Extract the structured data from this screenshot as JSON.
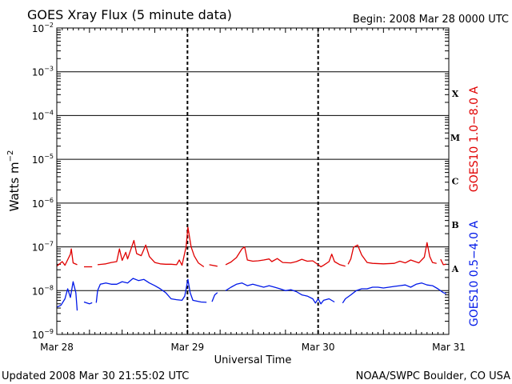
{
  "chart_data": {
    "type": "line",
    "title": "GOES Xray Flux (5 minute data)",
    "begin_label": "Begin:  2008 Mar 28 0000 UTC",
    "xlabel": "Universal Time",
    "ylabel": "Watts m",
    "ylabel_exp": "−2",
    "y_scale": "log",
    "ylim": [
      1e-09,
      0.01
    ],
    "y_ticks": [
      {
        "mant": "10",
        "exp": "−2",
        "value": 0.01
      },
      {
        "mant": "10",
        "exp": "−3",
        "value": 0.001
      },
      {
        "mant": "10",
        "exp": "−4",
        "value": 0.0001
      },
      {
        "mant": "10",
        "exp": "−5",
        "value": 1e-05
      },
      {
        "mant": "10",
        "exp": "−6",
        "value": 1e-06
      },
      {
        "mant": "10",
        "exp": "−7",
        "value": 1e-07
      },
      {
        "mant": "10",
        "exp": "−8",
        "value": 1e-08
      },
      {
        "mant": "10",
        "exp": "−9",
        "value": 1e-09
      }
    ],
    "xlim": [
      "2008-03-28",
      "2008-03-31"
    ],
    "x_ticks": [
      {
        "label": "Mar 28",
        "value": "2008-03-28"
      },
      {
        "label": "Mar 29",
        "value": "2008-03-29"
      },
      {
        "label": "Mar 30",
        "value": "2008-03-30"
      },
      {
        "label": "Mar 31",
        "value": "2008-03-31"
      }
    ],
    "flare_classes": [
      {
        "label": "X",
        "value": 0.0001
      },
      {
        "label": "M",
        "value": 1e-05
      },
      {
        "label": "C",
        "value": 1e-06
      },
      {
        "label": "B",
        "value": 1e-07
      },
      {
        "label": "A",
        "value": 1e-08
      }
    ],
    "grid": true,
    "series": [
      {
        "name": "GOES10 1.0−8.0 A",
        "color": "#e00000",
        "points": [
          [
            "2008-03-28T00:00",
            3.6e-08
          ],
          [
            "2008-03-28T01:00",
            4.6e-08
          ],
          [
            "2008-03-28T01:30",
            3.8e-08
          ],
          [
            "2008-03-28T02:30",
            6.8e-08
          ],
          [
            "2008-03-28T02:40",
            9e-08
          ],
          [
            "2008-03-28T03:00",
            4.3e-08
          ],
          [
            "2008-03-28T03:45",
            3.9e-08
          ],
          null,
          [
            "2008-03-28T05:00",
            3.5e-08
          ],
          [
            "2008-03-28T06:30",
            3.5e-08
          ],
          null,
          [
            "2008-03-28T07:30",
            3.9e-08
          ],
          [
            "2008-03-28T09:00",
            4.1e-08
          ],
          [
            "2008-03-28T10:00",
            4.4e-08
          ],
          [
            "2008-03-28T11:00",
            4.6e-08
          ],
          [
            "2008-03-28T11:30",
            9e-08
          ],
          [
            "2008-03-28T12:00",
            4.9e-08
          ],
          [
            "2008-03-28T12:40",
            7.5e-08
          ],
          [
            "2008-03-28T13:00",
            5.3e-08
          ],
          [
            "2008-03-28T14:10",
            1.4e-07
          ],
          [
            "2008-03-28T14:40",
            7e-08
          ],
          [
            "2008-03-28T15:30",
            6.3e-08
          ],
          [
            "2008-03-28T16:20",
            1.1e-07
          ],
          [
            "2008-03-28T17:00",
            6e-08
          ],
          [
            "2008-03-28T18:00",
            4.4e-08
          ],
          [
            "2008-03-28T19:00",
            4.1e-08
          ],
          [
            "2008-03-28T20:00",
            4e-08
          ],
          [
            "2008-03-28T21:00",
            4e-08
          ],
          [
            "2008-03-28T22:00",
            3.9e-08
          ],
          [
            "2008-03-28T22:30",
            5e-08
          ],
          [
            "2008-03-28T23:00",
            3.8e-08
          ],
          [
            "2008-03-28T23:45",
            1e-07
          ],
          [
            "2008-03-29T00:05",
            2.8e-07
          ],
          [
            "2008-03-29T00:40",
            1e-07
          ],
          [
            "2008-03-29T01:15",
            6.2e-08
          ],
          [
            "2008-03-29T02:00",
            4.3e-08
          ],
          [
            "2008-03-29T03:00",
            3.5e-08
          ],
          null,
          [
            "2008-03-29T04:00",
            3.9e-08
          ],
          [
            "2008-03-29T05:30",
            3.6e-08
          ],
          null,
          [
            "2008-03-29T07:00",
            3.9e-08
          ],
          [
            "2008-03-29T08:00",
            4.5e-08
          ],
          [
            "2008-03-29T09:00",
            5.7e-08
          ],
          [
            "2008-03-29T10:00",
            9e-08
          ],
          [
            "2008-03-29T10:30",
            1e-07
          ],
          [
            "2008-03-29T11:00",
            5e-08
          ],
          [
            "2008-03-29T12:00",
            4.7e-08
          ],
          [
            "2008-03-29T13:00",
            4.8e-08
          ],
          [
            "2008-03-29T14:00",
            5e-08
          ],
          [
            "2008-03-29T15:00",
            5.3e-08
          ],
          [
            "2008-03-29T15:30",
            4.6e-08
          ],
          [
            "2008-03-29T16:30",
            5.4e-08
          ],
          [
            "2008-03-29T17:30",
            4.4e-08
          ],
          [
            "2008-03-29T19:00",
            4.3e-08
          ],
          [
            "2008-03-29T20:00",
            4.6e-08
          ],
          [
            "2008-03-29T21:00",
            5.2e-08
          ],
          [
            "2008-03-29T22:00",
            4.7e-08
          ],
          [
            "2008-03-29T23:00",
            4.8e-08
          ],
          [
            "2008-03-30T00:00",
            3.9e-08
          ],
          [
            "2008-03-30T00:30",
            3.5e-08
          ],
          [
            "2008-03-30T01:00",
            3.8e-08
          ],
          [
            "2008-03-30T02:00",
            4.6e-08
          ],
          [
            "2008-03-30T02:30",
            6.8e-08
          ],
          [
            "2008-03-30T03:00",
            4.6e-08
          ],
          [
            "2008-03-30T04:00",
            3.9e-08
          ],
          [
            "2008-03-30T05:00",
            3.6e-08
          ],
          null,
          [
            "2008-03-30T05:30",
            4e-08
          ],
          [
            "2008-03-30T06:00",
            5.3e-08
          ],
          [
            "2008-03-30T06:30",
            9.8e-08
          ],
          [
            "2008-03-30T07:15",
            1.1e-07
          ],
          [
            "2008-03-30T08:00",
            6.5e-08
          ],
          [
            "2008-03-30T09:00",
            4.4e-08
          ],
          [
            "2008-03-30T10:00",
            4.2e-08
          ],
          [
            "2008-03-30T12:00",
            4.1e-08
          ],
          [
            "2008-03-30T14:00",
            4.2e-08
          ],
          [
            "2008-03-30T15:00",
            4.7e-08
          ],
          [
            "2008-03-30T16:00",
            4.3e-08
          ],
          [
            "2008-03-30T17:00",
            5e-08
          ],
          [
            "2008-03-30T18:30",
            4.3e-08
          ],
          [
            "2008-03-30T19:30",
            5.8e-08
          ],
          [
            "2008-03-30T20:00",
            1.25e-07
          ],
          [
            "2008-03-30T20:30",
            6e-08
          ],
          [
            "2008-03-30T21:00",
            4.4e-08
          ],
          [
            "2008-03-30T21:45",
            4.2e-08
          ],
          null,
          [
            "2008-03-30T22:30",
            5.2e-08
          ],
          [
            "2008-03-30T23:00",
            3.9e-08
          ],
          [
            "2008-03-30T23:30",
            4e-08
          ]
        ]
      },
      {
        "name": "GOES10 0.5−4.0 A",
        "color": "#0018e8",
        "points": [
          [
            "2008-03-28T00:00",
            4.2e-09
          ],
          [
            "2008-03-28T00:45",
            4.6e-09
          ],
          [
            "2008-03-28T01:30",
            6.5e-09
          ],
          [
            "2008-03-28T02:00",
            1.1e-08
          ],
          [
            "2008-03-28T02:30",
            7e-09
          ],
          [
            "2008-03-28T03:00",
            1.6e-08
          ],
          [
            "2008-03-28T03:30",
            9e-09
          ],
          [
            "2008-03-28T03:45",
            3.5e-09
          ],
          null,
          [
            "2008-03-28T05:00",
            5.5e-09
          ],
          [
            "2008-03-28T06:00",
            5e-09
          ],
          [
            "2008-03-28T06:30",
            5.3e-09
          ],
          null,
          [
            "2008-03-28T07:15",
            5.3e-09
          ],
          [
            "2008-03-28T07:30",
            1e-08
          ],
          [
            "2008-03-28T08:00",
            1.4e-08
          ],
          [
            "2008-03-28T09:00",
            1.5e-08
          ],
          [
            "2008-03-28T10:00",
            1.4e-08
          ],
          [
            "2008-03-28T11:00",
            1.4e-08
          ],
          [
            "2008-03-28T12:00",
            1.6e-08
          ],
          [
            "2008-03-28T13:00",
            1.5e-08
          ],
          [
            "2008-03-28T14:00",
            1.9e-08
          ],
          [
            "2008-03-28T15:00",
            1.7e-08
          ],
          [
            "2008-03-28T16:00",
            1.8e-08
          ],
          [
            "2008-03-28T17:00",
            1.5e-08
          ],
          [
            "2008-03-28T18:00",
            1.3e-08
          ],
          [
            "2008-03-28T19:00",
            1.1e-08
          ],
          [
            "2008-03-28T20:00",
            9e-09
          ],
          [
            "2008-03-28T21:00",
            6.5e-09
          ],
          [
            "2008-03-28T22:00",
            6.2e-09
          ],
          [
            "2008-03-28T23:00",
            6e-09
          ],
          [
            "2008-03-28T23:30",
            7.5e-09
          ],
          [
            "2008-03-29T00:05",
            1.8e-08
          ],
          [
            "2008-03-29T00:30",
            9e-09
          ],
          [
            "2008-03-29T01:00",
            6e-09
          ],
          [
            "2008-03-29T02:30",
            5.5e-09
          ],
          [
            "2008-03-29T03:30",
            5.4e-09
          ],
          null,
          [
            "2008-03-29T04:30",
            5.6e-09
          ],
          [
            "2008-03-29T05:00",
            8e-09
          ],
          [
            "2008-03-29T05:30",
            9e-09
          ],
          null,
          [
            "2008-03-29T07:00",
            1e-08
          ],
          [
            "2008-03-29T08:00",
            1.2e-08
          ],
          [
            "2008-03-29T09:00",
            1.4e-08
          ],
          [
            "2008-03-29T10:00",
            1.5e-08
          ],
          [
            "2008-03-29T11:00",
            1.3e-08
          ],
          [
            "2008-03-29T12:00",
            1.4e-08
          ],
          [
            "2008-03-29T13:00",
            1.3e-08
          ],
          [
            "2008-03-29T14:00",
            1.2e-08
          ],
          [
            "2008-03-29T15:00",
            1.3e-08
          ],
          [
            "2008-03-29T16:00",
            1.2e-08
          ],
          [
            "2008-03-29T17:00",
            1.1e-08
          ],
          [
            "2008-03-29T18:00",
            1e-08
          ],
          [
            "2008-03-29T19:00",
            1.05e-08
          ],
          [
            "2008-03-29T20:00",
            9.5e-09
          ],
          [
            "2008-03-29T21:00",
            8e-09
          ],
          [
            "2008-03-29T22:00",
            7.5e-09
          ],
          [
            "2008-03-29T23:00",
            6.5e-09
          ],
          [
            "2008-03-29T23:30",
            5.2e-09
          ],
          [
            "2008-03-30T00:00",
            6.5e-09
          ],
          [
            "2008-03-30T00:30",
            5e-09
          ],
          [
            "2008-03-30T01:00",
            6e-09
          ],
          [
            "2008-03-30T02:00",
            6.5e-09
          ],
          [
            "2008-03-30T03:00",
            5.5e-09
          ],
          null,
          [
            "2008-03-30T04:30",
            5.2e-09
          ],
          [
            "2008-03-30T05:00",
            6.5e-09
          ],
          [
            "2008-03-30T06:00",
            8e-09
          ],
          [
            "2008-03-30T07:00",
            1e-08
          ],
          [
            "2008-03-30T08:00",
            1.1e-08
          ],
          [
            "2008-03-30T09:00",
            1.1e-08
          ],
          [
            "2008-03-30T10:00",
            1.2e-08
          ],
          [
            "2008-03-30T11:00",
            1.2e-08
          ],
          [
            "2008-03-30T12:00",
            1.15e-08
          ],
          [
            "2008-03-30T13:00",
            1.2e-08
          ],
          [
            "2008-03-30T14:00",
            1.25e-08
          ],
          [
            "2008-03-30T15:00",
            1.3e-08
          ],
          [
            "2008-03-30T16:00",
            1.35e-08
          ],
          [
            "2008-03-30T17:00",
            1.2e-08
          ],
          [
            "2008-03-30T18:00",
            1.4e-08
          ],
          [
            "2008-03-30T19:00",
            1.5e-08
          ],
          [
            "2008-03-30T20:00",
            1.35e-08
          ],
          [
            "2008-03-30T21:00",
            1.3e-08
          ],
          [
            "2008-03-30T22:00",
            1.1e-08
          ],
          [
            "2008-03-30T23:00",
            9e-09
          ],
          [
            "2008-03-30T23:30",
            8.5e-09
          ]
        ]
      }
    ]
  },
  "footer": {
    "updated": "Updated 2008 Mar 30 21:55:02 UTC",
    "source": "NOAA/SWPC Boulder, CO USA"
  }
}
